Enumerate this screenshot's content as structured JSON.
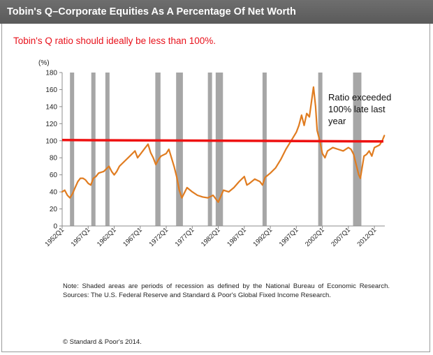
{
  "title": "Tobin's Q–Corporate Equities As A Percentage Of Net Worth",
  "subtitle": "Tobin's Q ratio should ideally be less than 100%.",
  "note": "Note: Shaded areas are periods of recession as defined by the National Bureau of Economic Research. Sources: The U.S. Federal Reserve and Standard & Poor's Global Fixed Income Research.",
  "copyright": "© Standard & Poor's 2014.",
  "colors": {
    "series": "#e07c20",
    "threshold": "#ee1111",
    "recession": "#a6a6a6",
    "subtitle": "#e8101a"
  },
  "chart_data": {
    "type": "line",
    "ylabel": "(%)",
    "ylim": [
      0,
      180
    ],
    "yticks": [
      0,
      20,
      40,
      60,
      80,
      100,
      120,
      140,
      160,
      180
    ],
    "xlim": [
      1952,
      2014
    ],
    "xticks": [
      "1952Q1",
      "1957Q1",
      "1962Q1",
      "1967Q1",
      "1972Q1",
      "1977Q1",
      "1982Q1",
      "1987Q1",
      "1992Q1",
      "1997Q1",
      "2002Q1",
      "2007Q1",
      "2012Q1"
    ],
    "threshold": 100,
    "annotation": [
      "Ratio exceeded",
      "100% late last",
      "year"
    ],
    "recessions": [
      [
        1953.5,
        1954.3
      ],
      [
        1957.6,
        1958.3
      ],
      [
        1960.3,
        1961.1
      ],
      [
        1969.9,
        1970.9
      ],
      [
        1973.9,
        1975.2
      ],
      [
        1980.0,
        1980.5
      ],
      [
        1981.5,
        1982.9
      ],
      [
        1990.5,
        1991.2
      ],
      [
        2001.2,
        2001.9
      ],
      [
        2007.9,
        2009.5
      ]
    ],
    "series": [
      {
        "x": [
          1952,
          1952.5,
          1953,
          1953.5,
          1954,
          1954.5,
          1955,
          1955.5,
          1956,
          1956.5,
          1957,
          1957.5,
          1958,
          1958.5,
          1959,
          1960,
          1961,
          1961.5,
          1962,
          1962.5,
          1963,
          1964,
          1965,
          1966,
          1966.5,
          1967,
          1968,
          1968.5,
          1969,
          1969.5,
          1970,
          1970.5,
          1971,
          1972,
          1972.5,
          1973,
          1973.5,
          1974,
          1974.5,
          1975,
          1976,
          1977,
          1978,
          1979,
          1980,
          1981,
          1981.5,
          1982,
          1982.5,
          1983,
          1984,
          1985,
          1986,
          1987,
          1987.5,
          1988,
          1989,
          1990,
          1990.5,
          1991,
          1992,
          1993,
          1994,
          1995,
          1996,
          1997,
          1997.5,
          1998,
          1998.5,
          1999,
          1999.5,
          2000,
          2000.3,
          2000.7,
          2001,
          2001.5,
          2002,
          2002.5,
          2003,
          2004,
          2005,
          2006,
          2007,
          2007.5,
          2008,
          2008.5,
          2009,
          2009.3,
          2010,
          2010.5,
          2011,
          2011.5,
          2012,
          2013,
          2013.5,
          2013.9
        ],
        "values": [
          40,
          42,
          36,
          33,
          38,
          45,
          52,
          56,
          56,
          54,
          50,
          48,
          56,
          58,
          62,
          64,
          70,
          64,
          60,
          64,
          70,
          76,
          82,
          88,
          80,
          84,
          92,
          96,
          86,
          80,
          72,
          78,
          82,
          85,
          90,
          80,
          70,
          58,
          42,
          33,
          45,
          40,
          36,
          34,
          33,
          36,
          32,
          28,
          35,
          42,
          40,
          45,
          52,
          58,
          48,
          50,
          55,
          52,
          48,
          57,
          62,
          68,
          78,
          90,
          100,
          110,
          118,
          130,
          118,
          132,
          128,
          150,
          163,
          140,
          112,
          100,
          85,
          80,
          88,
          92,
          90,
          88,
          92,
          90,
          84,
          72,
          60,
          56,
          82,
          84,
          88,
          82,
          92,
          95,
          100,
          106
        ]
      }
    ]
  }
}
